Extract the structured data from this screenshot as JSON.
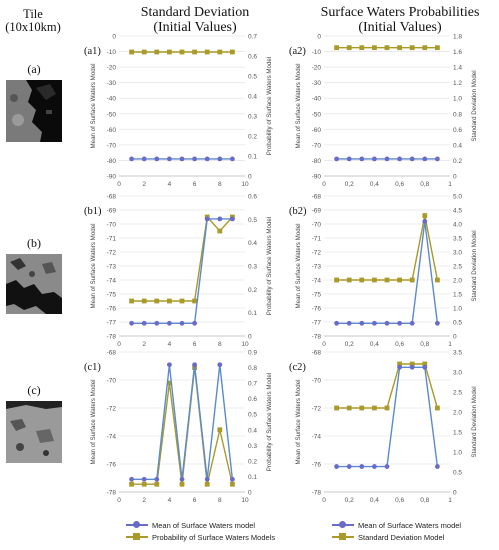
{
  "headers": {
    "tile": [
      "Tile",
      "(10x10km)"
    ],
    "std": [
      "Standard Deviation",
      "(Initial Values)"
    ],
    "prob": [
      "Surface Waters Probabilities",
      "(Initial Values)"
    ]
  },
  "tiles": [
    {
      "label": "(a)"
    },
    {
      "label": "(b)"
    },
    {
      "label": "(c)"
    }
  ],
  "colors": {
    "mean": "#6a6ac8",
    "prob": "#aa9a2a",
    "std": "#aa9a2a",
    "mean_line": "#5a8ad0",
    "grid": "#e6e6e6"
  },
  "legends": {
    "left": [
      "Mean of Surface Waters model",
      "Probability of Surface Waters Models"
    ],
    "right": [
      "Mean of Surface Waters model",
      "Standard Deviation Model"
    ]
  },
  "chart_data": [
    {
      "id": "(a1)",
      "type": "line",
      "x": [
        1,
        2,
        3,
        4,
        5,
        6,
        7,
        8,
        9
      ],
      "xlim": [
        0,
        10
      ],
      "xticks": [
        "0",
        "2",
        "4",
        "6",
        "8",
        "10"
      ],
      "ylim": [
        -90,
        0
      ],
      "yticks": [
        "0",
        "-10",
        "-20",
        "-30",
        "-40",
        "-50",
        "-60",
        "-70",
        "-80",
        "-90"
      ],
      "ylabel": "Mean of Surface Waters Model",
      "y2lim": [
        0,
        0.7
      ],
      "y2ticks": [
        "0.7",
        "0.6",
        "0.5",
        "0.4",
        "0.3",
        "0.2",
        "0.1",
        "0"
      ],
      "y2label": "Probability of Surface Waters Model",
      "series": [
        {
          "name": "Mean of Surface Waters model",
          "axis": "left",
          "color": "mean",
          "values": [
            -79,
            -79,
            -79,
            -79,
            -79,
            -79,
            -79,
            -79,
            -79
          ]
        },
        {
          "name": "Probability of Surface Waters Models",
          "axis": "right",
          "color": "prob",
          "values": [
            0.62,
            0.62,
            0.62,
            0.62,
            0.62,
            0.62,
            0.62,
            0.62,
            0.62
          ]
        }
      ]
    },
    {
      "id": "(a2)",
      "type": "line",
      "x": [
        0.1,
        0.2,
        0.3,
        0.4,
        0.5,
        0.6,
        0.7,
        0.8,
        0.9
      ],
      "xlim": [
        0,
        1
      ],
      "xticks": [
        "0",
        "0,2",
        "0,4",
        "0,6",
        "0,8",
        "1"
      ],
      "ylim": [
        -90,
        0
      ],
      "yticks": [
        "0",
        "-10",
        "-20",
        "-30",
        "-40",
        "-50",
        "-60",
        "-70",
        "-80",
        "-90"
      ],
      "ylabel": "Mean of Surface Waters Model",
      "y2lim": [
        0,
        1.8
      ],
      "y2ticks": [
        "1.8",
        "1.6",
        "1.4",
        "1.2",
        "1.0",
        "0.8",
        "0.6",
        "0.4",
        "0.2",
        "0"
      ],
      "y2label": "Standard Deviation Model",
      "series": [
        {
          "name": "Mean of Surface Waters model",
          "axis": "left",
          "color": "mean",
          "values": [
            -79,
            -79,
            -79,
            -79,
            -79,
            -79,
            -79,
            -79,
            -79
          ]
        },
        {
          "name": "Standard Deviation Model",
          "axis": "right",
          "color": "std",
          "values": [
            1.65,
            1.65,
            1.65,
            1.65,
            1.65,
            1.65,
            1.65,
            1.65,
            1.65
          ]
        }
      ]
    },
    {
      "id": "(b1)",
      "type": "line",
      "x": [
        1,
        2,
        3,
        4,
        5,
        6,
        7,
        8,
        9
      ],
      "xlim": [
        0,
        10
      ],
      "xticks": [
        "0",
        "2",
        "4",
        "6",
        "8",
        "10"
      ],
      "ylim": [
        -78,
        -67
      ],
      "yticks": [
        "-68",
        "-69",
        "-70",
        "-71",
        "-72",
        "-73",
        "-74",
        "-75",
        "-76",
        "-77",
        "-78"
      ],
      "ylabel": "Mean of Surface Waters Model",
      "y2lim": [
        0,
        0.6
      ],
      "y2ticks": [
        "0.6",
        "0.5",
        "0.4",
        "0.3",
        "0.2",
        "0.1",
        "0"
      ],
      "y2label": "Probability of Surface Waters Model",
      "series": [
        {
          "name": "Mean of Surface Waters model",
          "axis": "left",
          "color": "mean",
          "values": [
            -77,
            -77,
            -77,
            -77,
            -77,
            -77,
            -68.8,
            -68.8,
            -68.8
          ]
        },
        {
          "name": "Probability of Surface Waters Models",
          "axis": "right",
          "color": "prob",
          "values": [
            0.15,
            0.15,
            0.15,
            0.15,
            0.15,
            0.15,
            0.51,
            0.45,
            0.51
          ]
        }
      ]
    },
    {
      "id": "(b2)",
      "type": "line",
      "x": [
        0.1,
        0.2,
        0.3,
        0.4,
        0.5,
        0.6,
        0.7,
        0.8,
        0.9
      ],
      "xlim": [
        0,
        1
      ],
      "xticks": [
        "0",
        "0,2",
        "0,4",
        "0,6",
        "0,8",
        "1"
      ],
      "ylim": [
        -78,
        -67
      ],
      "yticks": [
        "-68",
        "-69",
        "-70",
        "-71",
        "-72",
        "-73",
        "-74",
        "-75",
        "-76",
        "-77",
        "-78"
      ],
      "ylabel": "Mean of Surface Waters Model",
      "y2lim": [
        0,
        5
      ],
      "y2ticks": [
        "5.0",
        "4.5",
        "4.0",
        "3.5",
        "3.0",
        "2.5",
        "2.0",
        "1.5",
        "1.0",
        "0.5",
        "0"
      ],
      "y2label": "Standard Deviation Model",
      "series": [
        {
          "name": "Mean of Surface Waters model",
          "axis": "left",
          "color": "mean",
          "values": [
            -77,
            -77,
            -77,
            -77,
            -77,
            -77,
            -77,
            -69,
            -77
          ]
        },
        {
          "name": "Standard Deviation Model",
          "axis": "right",
          "color": "std",
          "values": [
            2,
            2,
            2,
            2,
            2,
            2,
            2,
            4.3,
            2
          ]
        }
      ]
    },
    {
      "id": "(c1)",
      "type": "line",
      "x": [
        1,
        2,
        3,
        4,
        5,
        6,
        7,
        8,
        9
      ],
      "xlim": [
        0,
        10
      ],
      "xticks": [
        "0",
        "2",
        "4",
        "6",
        "8",
        "10"
      ],
      "ylim": [
        -78,
        -67
      ],
      "yticks": [
        "-68",
        "-70",
        "-72",
        "-74",
        "-76",
        "-78"
      ],
      "ylabel": "Mean of Surface Waters Model",
      "y2lim": [
        0,
        0.9
      ],
      "y2ticks": [
        "0.9",
        "0.8",
        "0.7",
        "0.6",
        "0.5",
        "0.4",
        "0.3",
        "0.2",
        "0.1",
        "0"
      ],
      "y2label": "Probability of Surface Waters Model",
      "series": [
        {
          "name": "Mean of Surface Waters model",
          "axis": "left",
          "color": "mean",
          "values": [
            -77,
            -77,
            -77,
            -68,
            -77,
            -68,
            -77,
            -68,
            -77
          ]
        },
        {
          "name": "Probability of Surface Waters Models",
          "axis": "right",
          "color": "prob",
          "values": [
            0.05,
            0.05,
            0.05,
            0.7,
            0.05,
            0.8,
            0.05,
            0.4,
            0.05
          ]
        }
      ]
    },
    {
      "id": "(c2)",
      "type": "line",
      "x": [
        0.1,
        0.2,
        0.3,
        0.4,
        0.5,
        0.6,
        0.7,
        0.8,
        0.9
      ],
      "xlim": [
        0,
        1
      ],
      "xticks": [
        "0",
        "0,2",
        "0,4",
        "0,6",
        "0,8",
        "1"
      ],
      "ylim": [
        -78,
        -67
      ],
      "yticks": [
        "-68",
        "-70",
        "-72",
        "-74",
        "-76",
        "-78"
      ],
      "ylabel": "Mean of Surface Waters Model",
      "y2lim": [
        0,
        3.5
      ],
      "y2ticks": [
        "3.5",
        "3.0",
        "2.5",
        "2.0",
        "1.5",
        "1.0",
        "0.5",
        "0"
      ],
      "y2label": "Standard Deviation Model",
      "series": [
        {
          "name": "Mean of Surface Waters model",
          "axis": "left",
          "color": "mean",
          "values": [
            -76,
            -76,
            -76,
            -76,
            -76,
            -68.2,
            -68.2,
            -68.2,
            -76
          ]
        },
        {
          "name": "Standard Deviation Model",
          "axis": "right",
          "color": "std",
          "values": [
            2.1,
            2.1,
            2.1,
            2.1,
            2.1,
            3.2,
            3.2,
            3.2,
            2.1
          ]
        }
      ]
    }
  ]
}
